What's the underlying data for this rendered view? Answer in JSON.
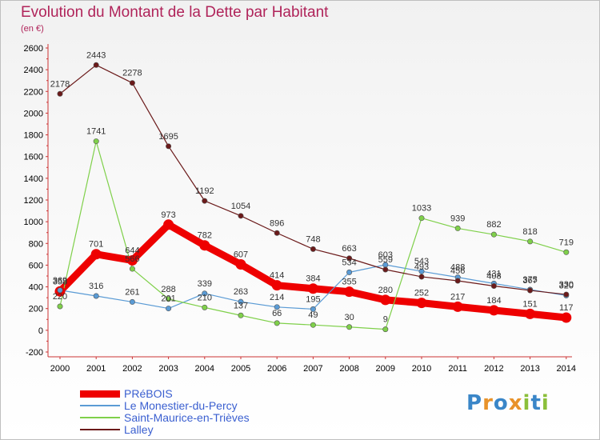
{
  "title": "Evolution du Montant de la Dette par Habitant",
  "subtitle": "(en €)",
  "logo": {
    "text": "Proxiti",
    "letters": [
      {
        "ch": "P",
        "color": "#3a86c8"
      },
      {
        "ch": "r",
        "color": "#e8922a"
      },
      {
        "ch": "o",
        "color": "#3a86c8"
      },
      {
        "ch": "x",
        "color": "#e8922a"
      },
      {
        "ch": "i",
        "color": "#8bbf3a"
      },
      {
        "ch": "t",
        "color": "#3a86c8"
      },
      {
        "ch": "i",
        "color": "#8bbf3a"
      }
    ]
  },
  "chart_data": {
    "type": "line",
    "title": "Evolution du Montant de la Dette par Habitant",
    "subtitle": "(en €)",
    "categories": [
      "2000",
      "2001",
      "2002",
      "2003",
      "2004",
      "2005",
      "2006",
      "2007",
      "2008",
      "2009",
      "2010",
      "2011",
      "2012",
      "2013",
      "2014"
    ],
    "ylim": [
      -200,
      2600
    ],
    "yticks": [
      -200,
      0,
      200,
      400,
      600,
      800,
      1000,
      1200,
      1400,
      1600,
      1800,
      2000,
      2200,
      2400,
      2600
    ],
    "grid": false,
    "legend_position": "bottom-left",
    "series": [
      {
        "name": "PRéBOIS",
        "color": "#ee0000",
        "values": [
          358,
          701,
          644,
          973,
          782,
          607,
          414,
          384,
          355,
          280,
          252,
          217,
          184,
          151,
          117
        ]
      },
      {
        "name": "Le Monestier-du-Percy",
        "color": "#5a9bd5",
        "values": [
          369,
          316,
          261,
          201,
          339,
          263,
          214,
          195,
          534,
          603,
          543,
          488,
          431,
          375,
          320
        ]
      },
      {
        "name": "Saint-Maurice-en-Trièves",
        "color": "#7fd04a",
        "values": [
          220,
          1741,
          566,
          288,
          210,
          137,
          66,
          49,
          30,
          9,
          1033,
          939,
          882,
          818,
          719
        ]
      },
      {
        "name": "Lalley",
        "color": "#6b1a1a",
        "values": [
          2178,
          2443,
          2278,
          1695,
          1192,
          1054,
          896,
          748,
          663,
          559,
          493,
          456,
          408,
          367,
          330
        ]
      }
    ]
  }
}
